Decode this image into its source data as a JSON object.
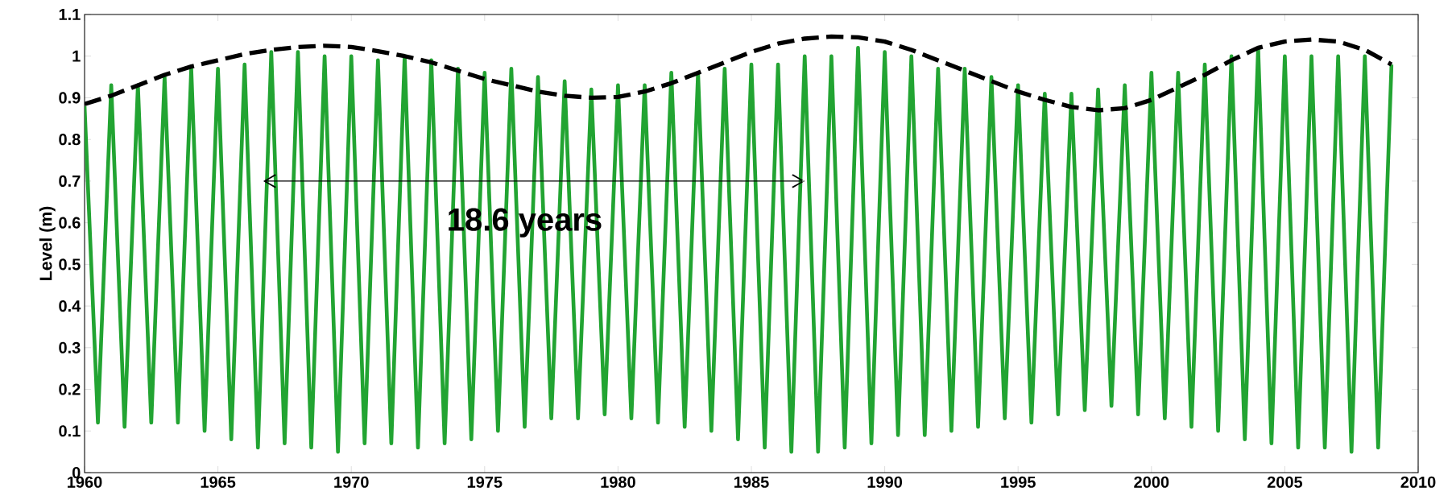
{
  "chart_data": {
    "type": "line",
    "ylabel": "Level (m)",
    "xlim": [
      1960,
      2010
    ],
    "xticks": [
      1960,
      1965,
      1970,
      1975,
      1980,
      1985,
      1990,
      1995,
      2000,
      2005,
      2010
    ],
    "ylim": [
      0,
      1.1
    ],
    "yticks": [
      0,
      0.1,
      0.2,
      0.3,
      0.4,
      0.5,
      0.6,
      0.7,
      0.8,
      0.9,
      1,
      1.1
    ],
    "annotations": [
      "18.6 years"
    ],
    "series": [
      {
        "color": "#22a432",
        "line_style": "solid",
        "x": [
          1960,
          1960.5,
          1961,
          1961.5,
          1962,
          1962.5,
          1963,
          1963.5,
          1964,
          1964.5,
          1965,
          1965.5,
          1966,
          1966.5,
          1967,
          1967.5,
          1968,
          1968.5,
          1969,
          1969.5,
          1970,
          1970.5,
          1971,
          1971.5,
          1972,
          1972.5,
          1973,
          1973.5,
          1974,
          1974.5,
          1975,
          1975.5,
          1976,
          1976.5,
          1977,
          1977.5,
          1978,
          1978.5,
          1979,
          1979.5,
          1980,
          1980.5,
          1981,
          1981.5,
          1982,
          1982.5,
          1983,
          1983.5,
          1984,
          1984.5,
          1985,
          1985.5,
          1986,
          1986.5,
          1987,
          1987.5,
          1988,
          1988.5,
          1989,
          1989.5,
          1990,
          1990.5,
          1991,
          1991.5,
          1992,
          1992.5,
          1993,
          1993.5,
          1994,
          1994.5,
          1995,
          1995.5,
          1996,
          1996.5,
          1997,
          1997.5,
          1998,
          1998.5,
          1999,
          1999.5,
          2000,
          2000.5,
          2001,
          2001.5,
          2002,
          2002.5,
          2003,
          2003.5,
          2004,
          2004.5,
          2005,
          2005.5,
          2006,
          2006.5,
          2007,
          2007.5,
          2008,
          2008.5,
          2009
        ],
        "values": [
          0.88,
          0.12,
          0.93,
          0.11,
          0.93,
          0.12,
          0.95,
          0.12,
          0.97,
          0.1,
          0.97,
          0.08,
          0.98,
          0.06,
          1.01,
          0.07,
          1.01,
          0.06,
          1.0,
          0.05,
          1.0,
          0.07,
          0.99,
          0.07,
          1.0,
          0.06,
          0.99,
          0.07,
          0.97,
          0.08,
          0.96,
          0.1,
          0.97,
          0.11,
          0.95,
          0.13,
          0.94,
          0.13,
          0.92,
          0.14,
          0.93,
          0.13,
          0.93,
          0.12,
          0.96,
          0.11,
          0.96,
          0.1,
          0.97,
          0.08,
          0.98,
          0.06,
          0.98,
          0.05,
          1.0,
          0.05,
          1.0,
          0.06,
          1.02,
          0.07,
          1.01,
          0.09,
          1.0,
          0.09,
          0.97,
          0.1,
          0.97,
          0.11,
          0.95,
          0.13,
          0.93,
          0.12,
          0.91,
          0.14,
          0.91,
          0.15,
          0.92,
          0.16,
          0.93,
          0.14,
          0.96,
          0.13,
          0.96,
          0.11,
          0.98,
          0.1,
          1.0,
          0.08,
          1.02,
          0.07,
          1.0,
          0.06,
          1.0,
          0.06,
          1.0,
          0.05,
          1.0,
          0.06,
          0.98
        ]
      },
      {
        "color": "#000000",
        "line_style": "dashed",
        "x": [
          1960,
          1961,
          1962,
          1963,
          1964,
          1965,
          1966,
          1967,
          1968,
          1969,
          1970,
          1971,
          1972,
          1973,
          1974,
          1975,
          1976,
          1977,
          1978,
          1979,
          1980,
          1981,
          1982,
          1983,
          1984,
          1985,
          1986,
          1987,
          1988,
          1989,
          1990,
          1991,
          1992,
          1993,
          1994,
          1995,
          1996,
          1997,
          1998,
          1999,
          2000,
          2001,
          2002,
          2003,
          2004,
          2005,
          2006,
          2007,
          2008,
          2009
        ],
        "values": [
          0.885,
          0.905,
          0.93,
          0.955,
          0.975,
          0.99,
          1.005,
          1.015,
          1.022,
          1.025,
          1.022,
          1.012,
          1.0,
          0.985,
          0.965,
          0.945,
          0.93,
          0.915,
          0.905,
          0.9,
          0.902,
          0.915,
          0.935,
          0.96,
          0.985,
          1.01,
          1.03,
          1.042,
          1.047,
          1.045,
          1.035,
          1.015,
          0.99,
          0.965,
          0.94,
          0.915,
          0.895,
          0.878,
          0.87,
          0.875,
          0.895,
          0.925,
          0.955,
          0.99,
          1.02,
          1.035,
          1.04,
          1.035,
          1.015,
          0.98
        ]
      }
    ]
  }
}
